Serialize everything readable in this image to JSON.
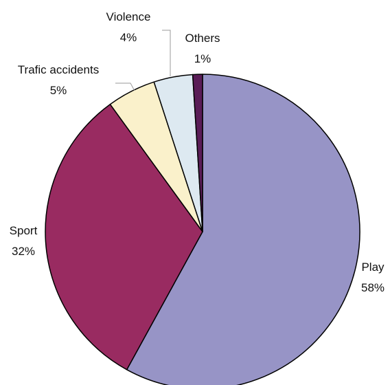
{
  "chart_data": {
    "type": "pie",
    "title": "",
    "start_angle_deg": 0,
    "direction": "clockwise",
    "slices": [
      {
        "name": "Play",
        "value": 58,
        "label": "58%",
        "color": "#9794C6"
      },
      {
        "name": "Sport",
        "value": 32,
        "label": "32%",
        "color": "#992B61"
      },
      {
        "name": "Trafic accidents",
        "value": 5,
        "label": "5%",
        "color": "#FAF1CB"
      },
      {
        "name": "Violence",
        "value": 4,
        "label": "4%",
        "color": "#DDE9F1"
      },
      {
        "name": "Others",
        "value": 1,
        "label": "1%",
        "color": "#5A1D57"
      }
    ],
    "legend": "none",
    "data_labels": "category and percentage outside slices"
  }
}
